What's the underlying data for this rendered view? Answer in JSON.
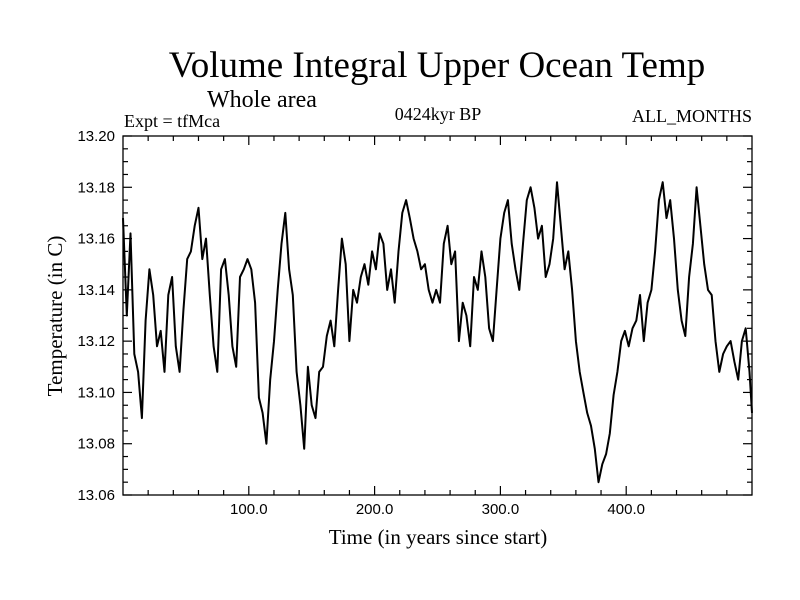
{
  "chart_data": {
    "type": "line",
    "title": "Volume Integral Upper Ocean Temp",
    "subtitle": "Whole area",
    "left_note": "Expt = tfMca",
    "center_note": "0424kyr BP",
    "right_note": "ALL_MONTHS",
    "xlabel": "Time (in years since start)",
    "ylabel": "Temperature (in C)",
    "xlim": [
      0,
      500
    ],
    "ylim": [
      13.06,
      13.2
    ],
    "xticks": [
      "100.0",
      "200.0",
      "300.0",
      "400.0"
    ],
    "yticks": [
      "13.06",
      "13.08",
      "13.10",
      "13.12",
      "13.14",
      "13.16",
      "13.18",
      "13.20"
    ],
    "grid": false,
    "x": [
      0,
      3,
      6,
      9,
      12,
      15,
      18,
      21,
      24,
      27,
      30,
      33,
      36,
      39,
      42,
      45,
      48,
      51,
      54,
      57,
      60,
      63,
      66,
      69,
      72,
      75,
      78,
      81,
      84,
      87,
      90,
      93,
      96,
      99,
      102,
      105,
      108,
      111,
      114,
      117,
      120,
      123,
      126,
      129,
      132,
      135,
      138,
      141,
      144,
      147,
      150,
      153,
      156,
      159,
      162,
      165,
      168,
      171,
      174,
      177,
      180,
      183,
      186,
      189,
      192,
      195,
      198,
      201,
      204,
      207,
      210,
      213,
      216,
      219,
      222,
      225,
      228,
      231,
      234,
      237,
      240,
      243,
      246,
      249,
      252,
      255,
      258,
      261,
      264,
      267,
      270,
      273,
      276,
      279,
      282,
      285,
      288,
      291,
      294,
      297,
      300,
      303,
      306,
      309,
      312,
      315,
      318,
      321,
      324,
      327,
      330,
      333,
      336,
      339,
      342,
      345,
      348,
      351,
      354,
      357,
      360,
      363,
      366,
      369,
      372,
      375,
      378,
      381,
      384,
      387,
      390,
      393,
      396,
      399,
      402,
      405,
      408,
      411,
      414,
      417,
      420,
      423,
      426,
      429,
      432,
      435,
      438,
      441,
      444,
      447,
      450,
      453,
      456,
      459,
      462,
      465,
      468,
      471,
      474,
      477,
      480,
      483,
      486,
      489,
      492,
      495,
      498,
      500
    ],
    "series": [
      {
        "values": [
          13.168,
          13.13,
          13.162,
          13.115,
          13.108,
          13.09,
          13.128,
          13.148,
          13.138,
          13.118,
          13.124,
          13.108,
          13.138,
          13.145,
          13.118,
          13.108,
          13.132,
          13.152,
          13.155,
          13.165,
          13.172,
          13.152,
          13.16,
          13.138,
          13.118,
          13.108,
          13.148,
          13.152,
          13.138,
          13.118,
          13.11,
          13.145,
          13.148,
          13.152,
          13.148,
          13.135,
          13.098,
          13.092,
          13.08,
          13.105,
          13.12,
          13.14,
          13.158,
          13.17,
          13.148,
          13.138,
          13.108,
          13.095,
          13.078,
          13.11,
          13.095,
          13.09,
          13.108,
          13.11,
          13.122,
          13.128,
          13.118,
          13.14,
          13.16,
          13.15,
          13.12,
          13.14,
          13.135,
          13.145,
          13.15,
          13.142,
          13.155,
          13.148,
          13.162,
          13.158,
          13.14,
          13.148,
          13.135,
          13.155,
          13.17,
          13.175,
          13.168,
          13.16,
          13.155,
          13.148,
          13.15,
          13.14,
          13.135,
          13.14,
          13.135,
          13.158,
          13.165,
          13.15,
          13.155,
          13.12,
          13.135,
          13.13,
          13.118,
          13.145,
          13.14,
          13.155,
          13.145,
          13.125,
          13.12,
          13.14,
          13.16,
          13.17,
          13.175,
          13.158,
          13.148,
          13.14,
          13.158,
          13.175,
          13.18,
          13.172,
          13.16,
          13.165,
          13.145,
          13.15,
          13.16,
          13.182,
          13.165,
          13.148,
          13.155,
          13.14,
          13.12,
          13.108,
          13.1,
          13.092,
          13.087,
          13.078,
          13.065,
          13.072,
          13.076,
          13.084,
          13.099,
          13.108,
          13.12,
          13.124,
          13.118,
          13.125,
          13.128,
          13.138,
          13.12,
          13.135,
          13.14,
          13.155,
          13.175,
          13.182,
          13.168,
          13.175,
          13.16,
          13.14,
          13.128,
          13.122,
          13.145,
          13.158,
          13.18,
          13.165,
          13.15,
          13.14,
          13.138,
          13.12,
          13.108,
          13.115,
          13.118,
          13.12,
          13.112,
          13.105,
          13.12,
          13.125,
          13.108,
          13.092
        ]
      }
    ]
  }
}
